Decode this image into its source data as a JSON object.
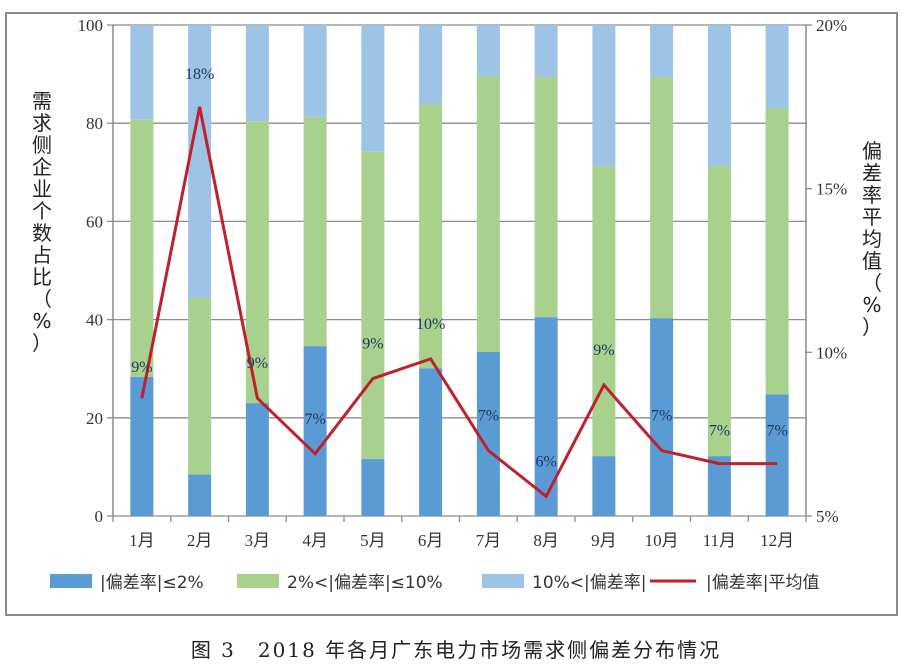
{
  "caption": "图 3　2018 年各月广东电力市场需求侧偏差分布情况",
  "colors": {
    "low": "#5b9bd5",
    "mid": "#a9d18e",
    "high": "#9dc3e6",
    "line": "#c0202a",
    "grid": "#8c8c8c"
  },
  "chart_data": {
    "type": "bar",
    "subtype": "stacked-bar-with-line",
    "title": "2018年各月广东电力市场需求侧偏差分布情况",
    "categories": [
      "1月",
      "2月",
      "3月",
      "4月",
      "5月",
      "6月",
      "7月",
      "8月",
      "9月",
      "10月",
      "11月",
      "12月"
    ],
    "series": [
      {
        "name": "|偏差率|≤2%",
        "type": "bar",
        "axis": "left",
        "values": [
          28.3,
          8.5,
          23.0,
          34.6,
          11.6,
          30.1,
          33.4,
          40.5,
          12.2,
          40.3,
          12.2,
          24.8
        ]
      },
      {
        "name": "2%<|偏差率|≤10%",
        "type": "bar",
        "axis": "left",
        "values": [
          52.5,
          35.9,
          57.4,
          46.7,
          62.7,
          53.8,
          56.2,
          48.9,
          59.1,
          49.1,
          59.1,
          58.3
        ]
      },
      {
        "name": "10%<|偏差率|",
        "type": "bar",
        "axis": "left",
        "values": [
          19.2,
          55.6,
          19.6,
          18.7,
          25.7,
          16.1,
          10.4,
          10.6,
          28.7,
          10.6,
          28.7,
          16.9
        ]
      },
      {
        "name": "|偏差率|平均值",
        "type": "line",
        "axis": "right",
        "values": [
          8.6,
          17.5,
          8.6,
          6.9,
          9.2,
          9.8,
          7.0,
          5.6,
          9.0,
          7.0,
          6.6,
          6.6
        ]
      }
    ],
    "data_labels": [
      "9%",
      "18%",
      "9%",
      "7%",
      "9%",
      "10%",
      "7%",
      "6%",
      "9%",
      "7%",
      "7%",
      "7%"
    ],
    "ylabel": "需求侧企业个数占比（%）",
    "ylabel_right": "偏差率平均值（%）",
    "ylim": [
      0,
      100
    ],
    "yticks": [
      0,
      20,
      40,
      60,
      80,
      100
    ],
    "ylim_right": [
      5,
      20
    ],
    "yticks_right": [
      "5%",
      "10%",
      "15%",
      "20%"
    ],
    "grid": true,
    "legend_position": "bottom"
  },
  "axes": {
    "left_ticks": [
      "0",
      "20",
      "40",
      "60",
      "80",
      "100"
    ],
    "right_ticks": [
      "5%",
      "10%",
      "15%",
      "20%"
    ],
    "left_title_chars": [
      "需",
      "求",
      "侧",
      "企",
      "业",
      "个",
      "数",
      "占",
      "比",
      "（",
      "%",
      "）"
    ],
    "right_title_chars": [
      "偏",
      "差",
      "率",
      "平",
      "均",
      "值",
      "（",
      "%",
      "）"
    ]
  },
  "legend": [
    {
      "label": "|偏差率|≤2%",
      "kind": "bar",
      "color_key": "low"
    },
    {
      "label": "2%<|偏差率|≤10%",
      "kind": "bar",
      "color_key": "mid"
    },
    {
      "label": "10%<|偏差率|",
      "kind": "bar",
      "color_key": "high"
    },
    {
      "label": "|偏差率|平均值",
      "kind": "line",
      "color_key": "line"
    }
  ]
}
